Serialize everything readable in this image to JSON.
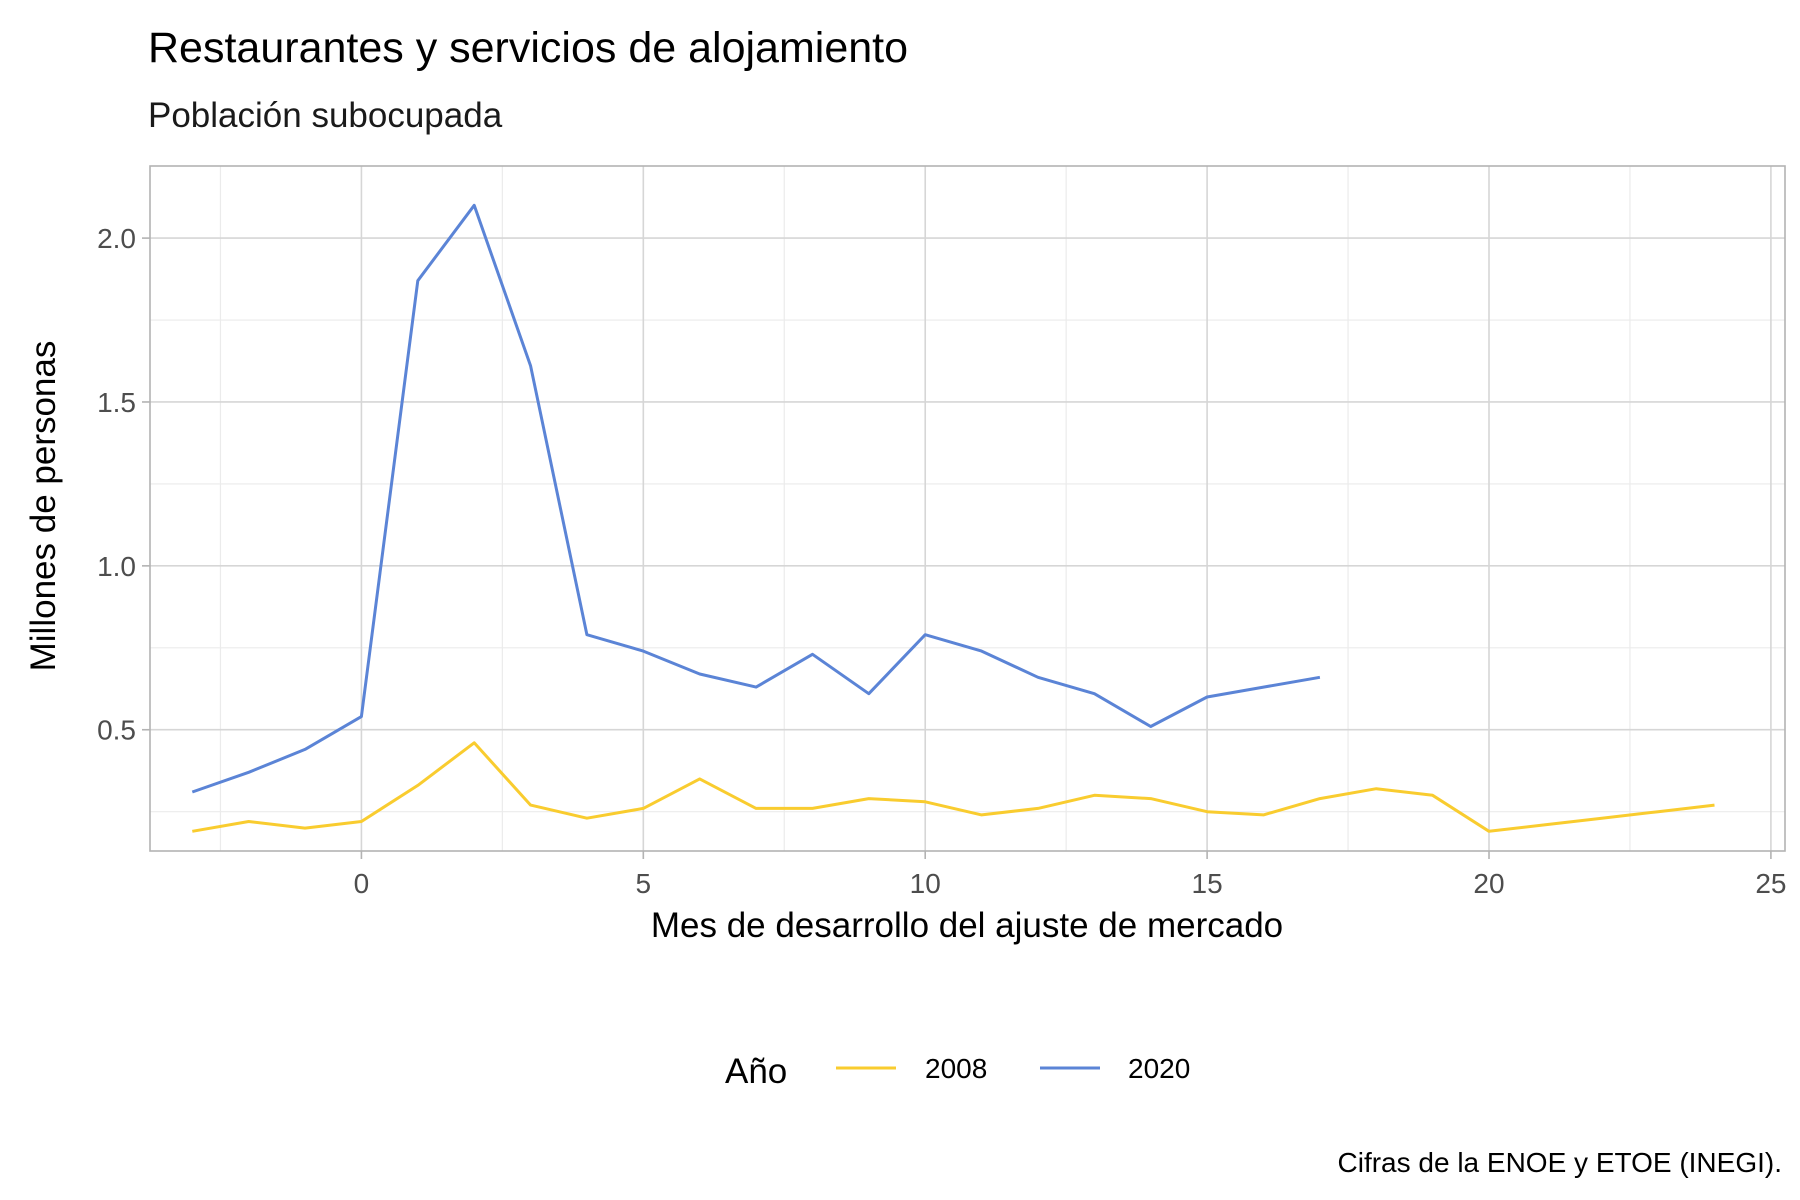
{
  "chart_data": {
    "type": "line",
    "title": "Restaurantes y servicios de alojamiento",
    "subtitle": "Población subocupada",
    "xlabel": "Mes de desarrollo del ajuste de mercado",
    "ylabel": "Millones de personas",
    "caption": "Cifras de la ENOE y ETOE (INEGI).",
    "xlim": [
      -3.75,
      25.25
    ],
    "ylim": [
      0.13,
      2.22
    ],
    "x_ticks": [
      0,
      5,
      10,
      15,
      20,
      25
    ],
    "y_ticks": [
      0.5,
      1.0,
      1.5,
      2.0
    ],
    "x_tick_labels": [
      "0",
      "5",
      "10",
      "15",
      "20",
      "25"
    ],
    "y_tick_labels": [
      "0.5",
      "1.0",
      "1.5",
      "2.0"
    ],
    "grid": true,
    "legend": {
      "title": "Año",
      "position": "bottom"
    },
    "series": [
      {
        "name": "2008",
        "color": "#f9cc2f",
        "x": [
          -3,
          -2,
          -1,
          0,
          1,
          2,
          3,
          4,
          5,
          6,
          7,
          8,
          9,
          10,
          11,
          12,
          13,
          14,
          15,
          16,
          17,
          18,
          19,
          20,
          21,
          22,
          23,
          24
        ],
        "y": [
          0.19,
          0.22,
          0.2,
          0.22,
          0.33,
          0.46,
          0.27,
          0.23,
          0.26,
          0.35,
          0.26,
          0.26,
          0.29,
          0.28,
          0.24,
          0.26,
          0.3,
          0.29,
          0.25,
          0.24,
          0.29,
          0.32,
          0.3,
          0.19,
          0.21,
          0.23,
          0.25,
          0.27
        ]
      },
      {
        "name": "2020",
        "color": "#5b84d6",
        "x": [
          -3,
          -2,
          -1,
          0,
          1,
          2,
          3,
          4,
          5,
          6,
          7,
          8,
          9,
          10,
          11,
          12,
          13,
          14,
          15,
          16,
          17
        ],
        "y": [
          0.31,
          0.37,
          0.44,
          0.54,
          1.87,
          2.1,
          1.61,
          0.79,
          0.74,
          0.67,
          0.63,
          0.73,
          0.61,
          0.79,
          0.74,
          0.66,
          0.61,
          0.51,
          0.6,
          0.63,
          0.66
        ]
      }
    ]
  }
}
